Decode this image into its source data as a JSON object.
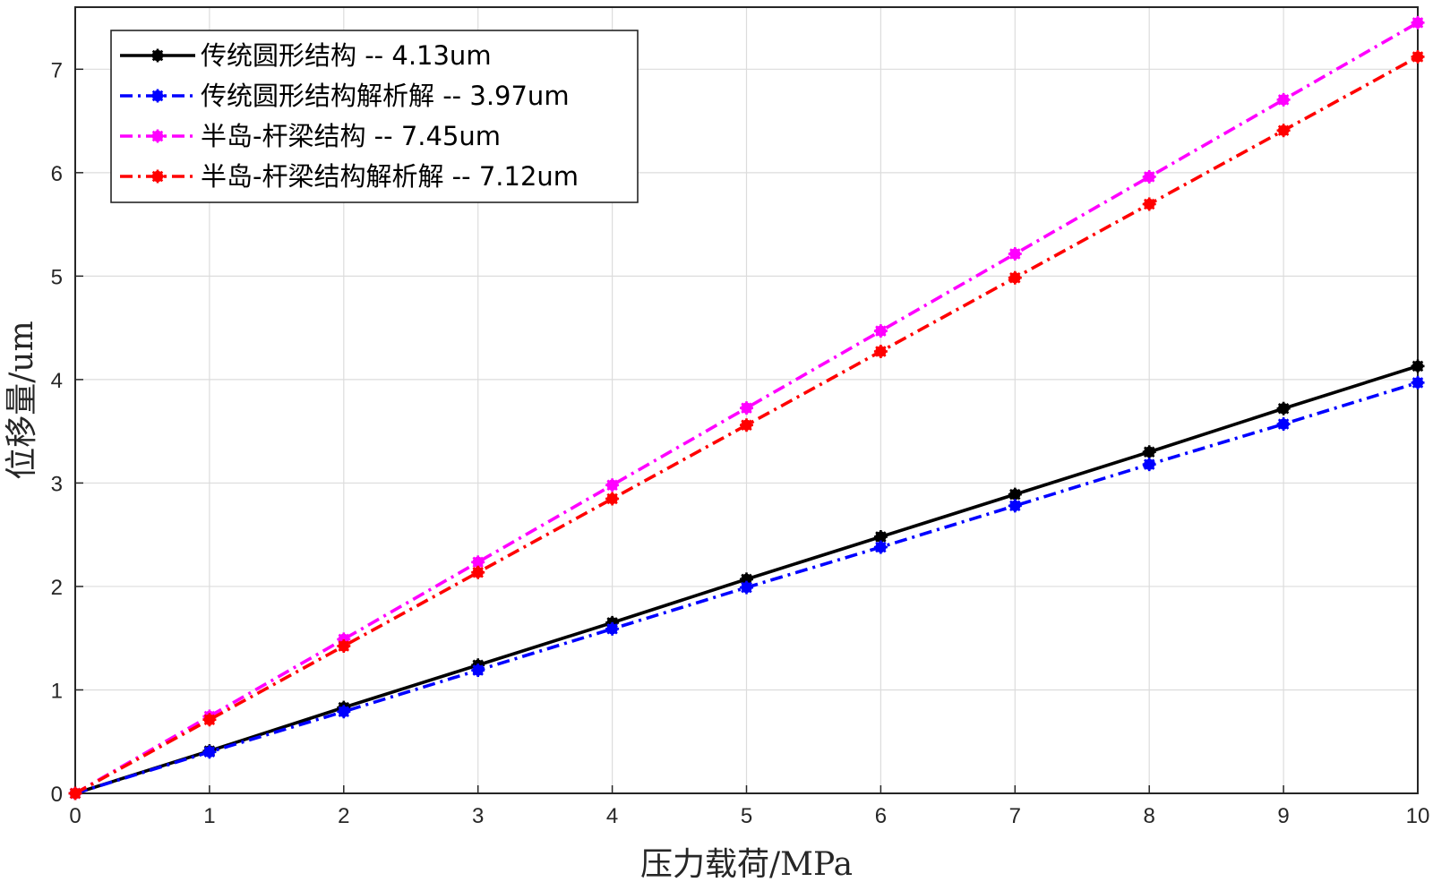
{
  "chart_data": {
    "type": "line",
    "xlabel": "压力载荷/MPa",
    "ylabel": "位移量/um",
    "x": [
      0,
      1,
      2,
      3,
      4,
      5,
      6,
      7,
      8,
      9,
      10
    ],
    "xlim": [
      0,
      10
    ],
    "ylim": [
      0,
      7.6
    ],
    "xticks": [
      "0",
      "1",
      "2",
      "3",
      "4",
      "5",
      "6",
      "7",
      "8",
      "9",
      "10"
    ],
    "yticks": [
      "0",
      "1",
      "2",
      "3",
      "4",
      "5",
      "6",
      "7"
    ],
    "grid": true,
    "legend_position": "top-left",
    "series": [
      {
        "name": "传统圆形结构 -- 4.13um",
        "color": "#000000",
        "line_style": "solid",
        "marker": "asterisk",
        "values": [
          0,
          0.41,
          0.83,
          1.24,
          1.65,
          2.07,
          2.48,
          2.89,
          3.3,
          3.72,
          4.13
        ]
      },
      {
        "name": "传统圆形结构解析解 -- 3.97um",
        "color": "#0000ff",
        "line_style": "dash-dot",
        "marker": "asterisk",
        "values": [
          0,
          0.4,
          0.79,
          1.19,
          1.59,
          1.99,
          2.38,
          2.78,
          3.18,
          3.57,
          3.97
        ]
      },
      {
        "name": "半岛-杆梁结构 -- 7.45um",
        "color": "#ff00ff",
        "line_style": "dash-dot",
        "marker": "asterisk",
        "values": [
          0,
          0.745,
          1.49,
          2.235,
          2.98,
          3.725,
          4.47,
          5.215,
          5.96,
          6.705,
          7.45
        ]
      },
      {
        "name": "半岛-杆梁结构解析解 -- 7.12um",
        "color": "#ff0000",
        "line_style": "dash-dot",
        "marker": "asterisk",
        "values": [
          0,
          0.712,
          1.424,
          2.136,
          2.848,
          3.56,
          4.272,
          4.984,
          5.696,
          6.408,
          7.12
        ]
      }
    ]
  }
}
